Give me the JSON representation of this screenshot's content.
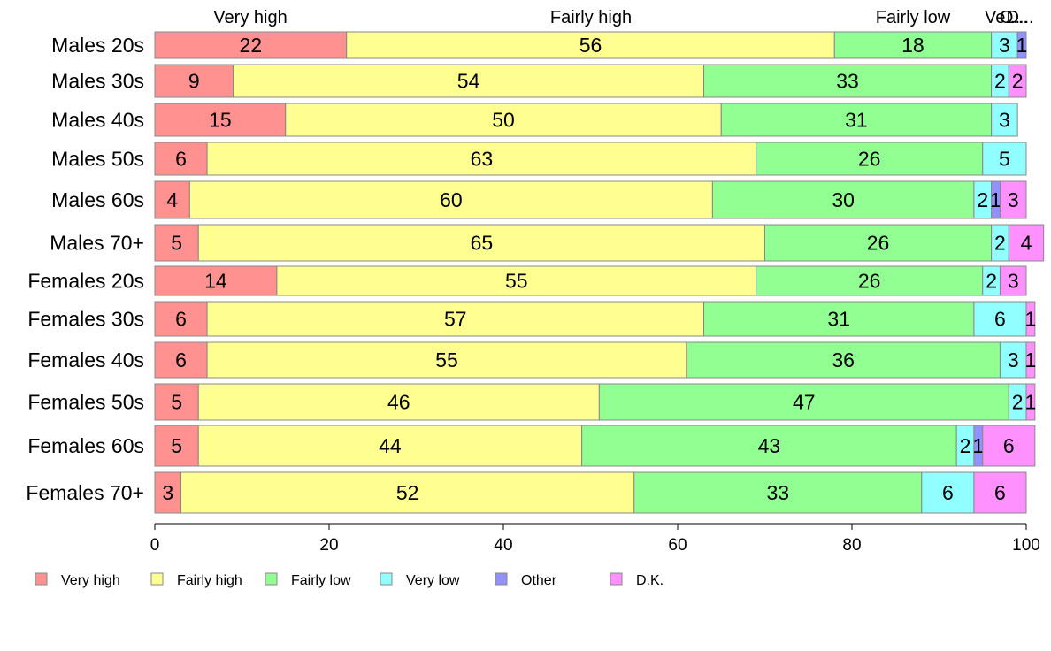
{
  "chart_data": {
    "type": "bar",
    "orientation": "horizontal",
    "stacked": true,
    "xlim": [
      0,
      100
    ],
    "x_ticks": [
      0,
      20,
      40,
      60,
      80,
      100
    ],
    "legend_position": "bottom",
    "categories": [
      "Males 20s",
      "Males 30s",
      "Males 40s",
      "Males 50s",
      "Males 60s",
      "Males 70+",
      "Females 20s",
      "Females 30s",
      "Females 40s",
      "Females 50s",
      "Females 60s",
      "Females 70+"
    ],
    "top_labels": [
      "Very high",
      "Fairly high",
      "Fairly low",
      "Ve...",
      "O...",
      "D..."
    ],
    "series": [
      {
        "name": "Very high",
        "color": "#ff9191",
        "values": [
          22,
          9,
          15,
          6,
          4,
          5,
          14,
          6,
          6,
          5,
          5,
          3
        ]
      },
      {
        "name": "Fairly high",
        "color": "#ffff91",
        "values": [
          56,
          54,
          50,
          63,
          60,
          65,
          55,
          57,
          55,
          46,
          44,
          52
        ]
      },
      {
        "name": "Fairly low",
        "color": "#91ff91",
        "values": [
          18,
          33,
          31,
          26,
          30,
          26,
          26,
          31,
          36,
          47,
          43,
          33
        ]
      },
      {
        "name": "Very low",
        "color": "#91ffff",
        "values": [
          3,
          2,
          3,
          5,
          2,
          2,
          2,
          6,
          3,
          2,
          2,
          6
        ]
      },
      {
        "name": "Other",
        "color": "#9191ff",
        "values": [
          1,
          0,
          0,
          0,
          1,
          0,
          0,
          0,
          0,
          0,
          1,
          0
        ]
      },
      {
        "name": "D.K.",
        "color": "#ff91ff",
        "values": [
          0,
          2,
          0,
          0,
          3,
          4,
          3,
          1,
          1,
          1,
          6,
          6
        ]
      }
    ]
  }
}
